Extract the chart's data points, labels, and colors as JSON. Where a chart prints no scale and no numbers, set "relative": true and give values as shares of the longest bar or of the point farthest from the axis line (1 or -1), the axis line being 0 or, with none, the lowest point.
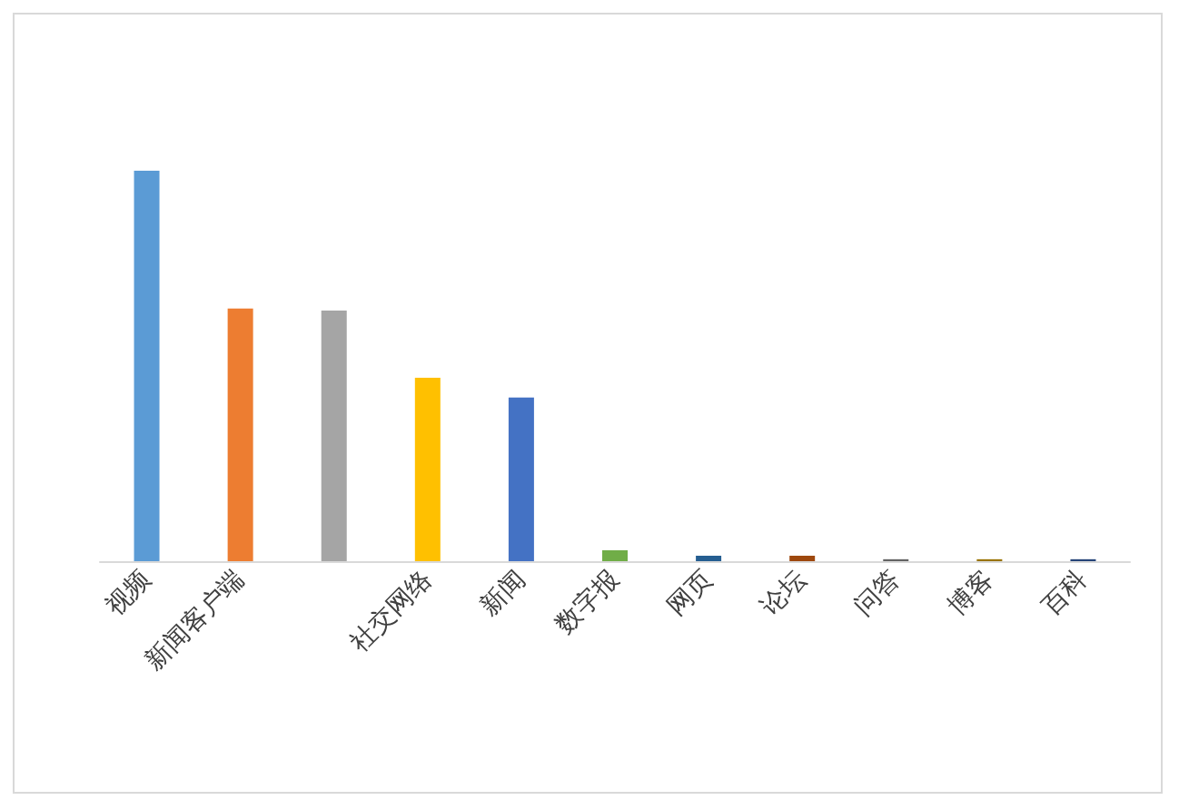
{
  "chart_data": {
    "type": "bar",
    "relative": true,
    "grid": false,
    "categories": [
      "视频",
      "新闻客户端",
      null,
      "社交网络",
      "新闻",
      "数字报",
      "网页",
      "论坛",
      "问答",
      "博客",
      "百科"
    ],
    "values": [
      1,
      0.647,
      0.642,
      0.47,
      0.419,
      0.028,
      0.014,
      0.014,
      0.005,
      0.005,
      0.005
    ],
    "colors": [
      "#5b9bd5",
      "#ed7d31",
      "#a5a5a5",
      "#ffc000",
      "#4472c4",
      "#70ad47",
      "#255e91",
      "#9e480e",
      "#636363",
      "#997300",
      "#264478"
    ]
  }
}
